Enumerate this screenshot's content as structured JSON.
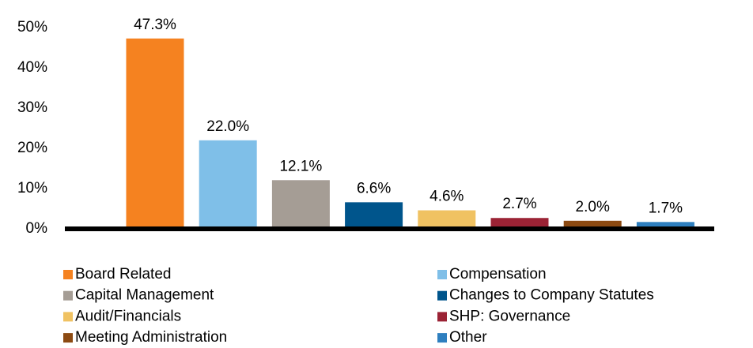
{
  "chart_data": {
    "type": "bar",
    "categories": [
      "Board Related",
      "Compensation",
      "Capital Management",
      "Changes to Company Statutes",
      "Audit/Financials",
      "SHP: Governance",
      "Meeting Administration",
      "Other"
    ],
    "values": [
      47.3,
      22.0,
      12.1,
      6.6,
      4.6,
      2.7,
      2.0,
      1.7
    ],
    "value_labels": [
      "47.3%",
      "22.0%",
      "12.1%",
      "6.6%",
      "4.6%",
      "2.7%",
      "2.0%",
      "1.7%"
    ],
    "colors": [
      "#f58220",
      "#7fbfe8",
      "#a59d95",
      "#00558c",
      "#f0c262",
      "#9b2335",
      "#8c4a12",
      "#2e7fbf"
    ],
    "ylim": [
      0,
      50
    ],
    "yticks": [
      {
        "value": 0,
        "label": "0%"
      },
      {
        "value": 10,
        "label": "10%"
      },
      {
        "value": 20,
        "label": "20%"
      },
      {
        "value": 30,
        "label": "30%"
      },
      {
        "value": 40,
        "label": "40%"
      },
      {
        "value": 50,
        "label": "50%"
      }
    ],
    "grid": false,
    "legend": "bottom"
  }
}
